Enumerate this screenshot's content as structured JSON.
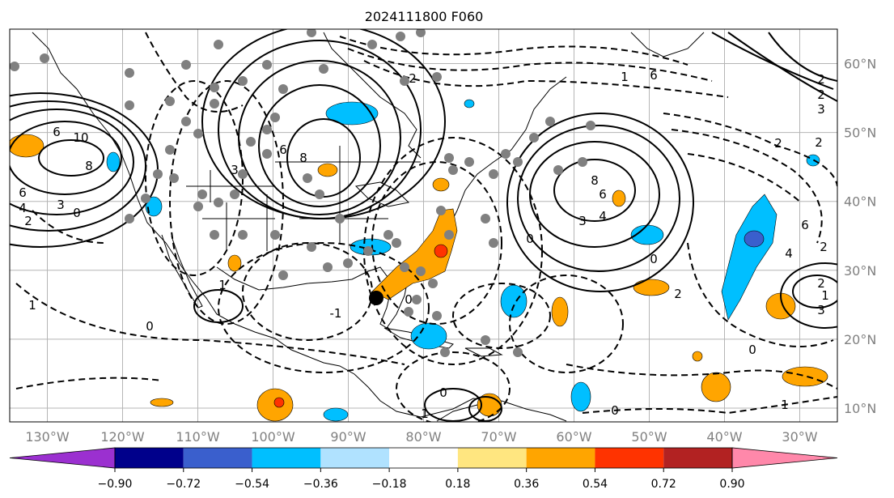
{
  "title": "2024111800 F060",
  "map": {
    "projection": "plate-carree",
    "lon_range": [
      -135,
      -25
    ],
    "lat_range": [
      8,
      65
    ],
    "lon_ticks": [
      "130°W",
      "120°W",
      "110°W",
      "100°W",
      "90°W",
      "80°W",
      "70°W",
      "60°W",
      "50°W",
      "40°W",
      "30°W"
    ],
    "lat_ticks": [
      "60°N",
      "50°N",
      "40°N",
      "30°N",
      "20°N",
      "10°N"
    ],
    "grid": true,
    "contour_labels": [
      "6",
      "10",
      "8",
      "6",
      "4",
      "2",
      "3",
      "0",
      "2",
      "3",
      "8",
      "6",
      "8",
      "6",
      "4",
      "3",
      "0",
      "2",
      "1",
      "6",
      "2",
      "2",
      "3",
      "2",
      "1",
      "0",
      "1",
      "0",
      "-1",
      "0",
      "0",
      "2",
      "1",
      "2",
      "6",
      "4",
      "3",
      "2",
      "0",
      "1",
      "0",
      "1"
    ]
  },
  "colorbar": {
    "tick_labels": [
      "−0.90",
      "−0.72",
      "−0.54",
      "−0.36",
      "−0.18",
      "0.18",
      "0.36",
      "0.54",
      "0.72",
      "0.90"
    ],
    "colors": [
      "#9b30d0",
      "#00008b",
      "#3a5fcd",
      "#00bfff",
      "#b0e2ff",
      "#ffffff",
      "#ffe680",
      "#ffa500",
      "#ff3300",
      "#b22222",
      "#ff88aa"
    ],
    "extend": "both"
  }
}
